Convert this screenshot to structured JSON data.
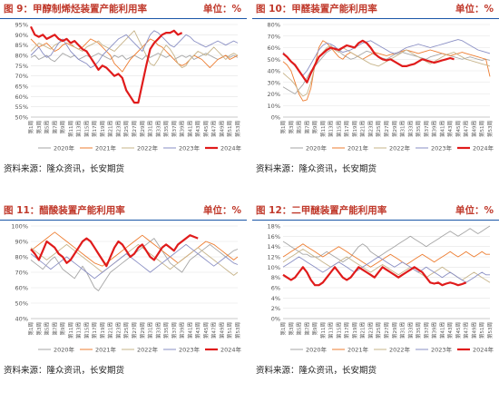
{
  "source_text": "资料来源：隆众资讯，长安期货",
  "unit_text": "单位：%",
  "x_tick_labels": [
    "第1周",
    "第3周",
    "第5周",
    "第7周",
    "第9周",
    "第11周",
    "第13周",
    "第15周",
    "第17周",
    "第19周",
    "第21周",
    "第23周",
    "第25周",
    "第27周",
    "第29周",
    "第31周",
    "第33周",
    "第35周",
    "第37周",
    "第39周",
    "第41周",
    "第43周",
    "第45周",
    "第47周",
    "第49周",
    "第51周",
    "第53周"
  ],
  "series_names": [
    "2020年",
    "2021年",
    "2022年",
    "2023年",
    "2024年"
  ],
  "series_colors": [
    "#a6a6a6",
    "#ed7d31",
    "#c7b48a",
    "#8a8fc4",
    "#e01b1b"
  ],
  "chart_data": [
    {
      "type": "line",
      "title": "图 9：甲醇制烯烃装置产能利用率",
      "ylim": [
        50,
        95
      ],
      "yticks": [
        50,
        55,
        60,
        65,
        70,
        75,
        80,
        85,
        90,
        95
      ],
      "series": [
        {
          "name": "2020年",
          "values": [
            79,
            80,
            78,
            79,
            80,
            78,
            77,
            79,
            81,
            80,
            79,
            80,
            78,
            79,
            80,
            79,
            80,
            81,
            80,
            79,
            78,
            80,
            79,
            80,
            78,
            79,
            80,
            79,
            78,
            80,
            79,
            80,
            81,
            80,
            79,
            80,
            78,
            79,
            80,
            79,
            80,
            78,
            79,
            80,
            81,
            80,
            79,
            78,
            79,
            80,
            79,
            80,
            79
          ]
        },
        {
          "name": "2021年",
          "values": [
            88,
            86,
            84,
            85,
            86,
            84,
            82,
            83,
            85,
            86,
            85,
            84,
            83,
            84,
            86,
            88,
            87,
            86,
            84,
            82,
            80,
            76,
            74,
            72,
            75,
            78,
            80,
            82,
            84,
            86,
            88,
            87,
            85,
            84,
            82,
            80,
            78,
            76,
            75,
            76,
            78,
            80,
            79,
            78,
            76,
            74,
            76,
            78,
            79,
            80,
            78,
            79,
            80
          ]
        },
        {
          "name": "2022年",
          "values": [
            82,
            84,
            86,
            85,
            84,
            83,
            85,
            86,
            87,
            88,
            86,
            84,
            83,
            82,
            84,
            85,
            86,
            87,
            85,
            84,
            83,
            82,
            84,
            86,
            88,
            90,
            92,
            88,
            84,
            80,
            76,
            75,
            78,
            82,
            85,
            83,
            80,
            76,
            74,
            75,
            78,
            80,
            82,
            81,
            80,
            82,
            84,
            82,
            80,
            78,
            80,
            81,
            80
          ]
        },
        {
          "name": "2023年",
          "values": [
            80,
            82,
            84,
            81,
            79,
            80,
            83,
            86,
            88,
            85,
            82,
            80,
            78,
            77,
            76,
            74,
            75,
            77,
            80,
            82,
            84,
            86,
            88,
            89,
            90,
            88,
            86,
            84,
            82,
            86,
            90,
            92,
            91,
            89,
            87,
            85,
            84,
            86,
            88,
            90,
            89,
            87,
            86,
            85,
            84,
            85,
            86,
            87,
            86,
            85,
            86,
            87,
            86
          ]
        },
        {
          "name": "2024年",
          "values": [
            94,
            90,
            89,
            90,
            88,
            89,
            90,
            88,
            87,
            88,
            86,
            87,
            85,
            83,
            82,
            79,
            76,
            73,
            75,
            74,
            72,
            70,
            71,
            69,
            63,
            60,
            57,
            57,
            66,
            75,
            83,
            86,
            88,
            90,
            91,
            91,
            92,
            90,
            91
          ]
        }
      ]
    },
    {
      "type": "line",
      "title": "图 10：甲醛装置产能利用率",
      "ylim": [
        0,
        80
      ],
      "yticks": [
        0,
        10,
        20,
        30,
        40,
        50,
        60,
        70,
        80
      ],
      "series": [
        {
          "name": "2020年",
          "values": [
            26,
            24,
            22,
            20,
            24,
            28,
            34,
            40,
            44,
            48,
            52,
            56,
            58,
            60,
            57,
            54,
            52,
            50,
            51,
            53,
            55,
            57,
            56,
            54,
            52,
            51,
            50,
            52,
            54,
            55,
            56,
            55,
            54,
            53,
            52,
            51,
            50,
            52,
            53,
            54,
            55,
            54,
            53,
            52,
            51,
            50,
            51,
            52,
            51,
            50,
            49,
            50,
            49
          ]
        },
        {
          "name": "2021年",
          "values": [
            48,
            45,
            40,
            30,
            20,
            14,
            15,
            25,
            45,
            60,
            66,
            64,
            60,
            56,
            52,
            50,
            54,
            56,
            54,
            52,
            50,
            52,
            54,
            56,
            55,
            54,
            53,
            54,
            55,
            56,
            57,
            58,
            57,
            56,
            55,
            56,
            57,
            58,
            57,
            56,
            55,
            54,
            53,
            54,
            55,
            56,
            55,
            54,
            53,
            52,
            51,
            50,
            35
          ]
        },
        {
          "name": "2022年",
          "values": [
            38,
            35,
            32,
            28,
            22,
            18,
            20,
            30,
            44,
            52,
            56,
            60,
            62,
            58,
            56,
            60,
            58,
            56,
            54,
            52,
            50,
            48,
            46,
            45,
            44,
            46,
            48,
            50,
            52,
            54,
            56,
            58,
            56,
            54,
            52,
            50,
            48,
            46,
            48,
            50,
            52,
            54,
            55,
            56,
            54,
            52,
            50,
            49,
            48,
            47,
            46,
            45,
            44
          ]
        },
        {
          "name": "2023年",
          "values": [
            56,
            52,
            48,
            44,
            40,
            36,
            40,
            46,
            52,
            58,
            62,
            64,
            63,
            61,
            58,
            56,
            57,
            58,
            60,
            62,
            64,
            65,
            66,
            64,
            62,
            60,
            58,
            56,
            55,
            56,
            58,
            60,
            61,
            62,
            63,
            62,
            61,
            60,
            61,
            62,
            63,
            64,
            65,
            66,
            67,
            66,
            64,
            62,
            60,
            58,
            57,
            56,
            55
          ]
        },
        {
          "name": "2024年",
          "values": [
            55,
            52,
            48,
            45,
            40,
            35,
            30,
            38,
            45,
            52,
            55,
            58,
            60,
            59,
            58,
            60,
            62,
            61,
            60,
            64,
            66,
            64,
            60,
            55,
            52,
            50,
            49,
            50,
            48,
            46,
            44,
            44,
            45,
            46,
            48,
            50,
            49,
            48,
            47,
            48,
            49,
            50,
            51,
            50
          ]
        }
      ]
    },
    {
      "type": "line",
      "title": "图 11：醋酸装置产能利用率",
      "ylim": [
        40,
        100
      ],
      "yticks": [
        40,
        50,
        60,
        70,
        80,
        90,
        100
      ],
      "series": [
        {
          "name": "2020年",
          "values": [
            78,
            76,
            74,
            72,
            75,
            78,
            80,
            76,
            72,
            70,
            68,
            66,
            70,
            74,
            70,
            65,
            60,
            58,
            62,
            66,
            70,
            72,
            74,
            76,
            78,
            80,
            82,
            84,
            86,
            88,
            90,
            92,
            88,
            84,
            80,
            76,
            74,
            72,
            70,
            74,
            78,
            80,
            82,
            84,
            86,
            88,
            86,
            84,
            82,
            80,
            82,
            84,
            85
          ]
        },
        {
          "name": "2021年",
          "values": [
            84,
            86,
            88,
            90,
            92,
            94,
            96,
            94,
            92,
            90,
            88,
            86,
            84,
            82,
            80,
            78,
            76,
            75,
            74,
            76,
            78,
            80,
            82,
            84,
            86,
            88,
            90,
            92,
            94,
            92,
            90,
            88,
            86,
            84,
            82,
            80,
            78,
            76,
            78,
            80,
            82,
            84,
            86,
            88,
            90,
            89,
            88,
            86,
            84,
            82,
            80,
            78,
            80
          ]
        },
        {
          "name": "2022年",
          "values": [
            86,
            84,
            82,
            80,
            78,
            80,
            82,
            84,
            86,
            88,
            86,
            84,
            82,
            80,
            78,
            76,
            74,
            72,
            70,
            72,
            74,
            76,
            78,
            80,
            82,
            84,
            86,
            88,
            86,
            84,
            82,
            80,
            78,
            76,
            74,
            72,
            74,
            76,
            78,
            80,
            82,
            84,
            86,
            84,
            82,
            80,
            78,
            76,
            74,
            72,
            70,
            68,
            70
          ]
        },
        {
          "name": "2023年",
          "values": [
            82,
            80,
            78,
            76,
            74,
            72,
            74,
            76,
            78,
            80,
            78,
            76,
            74,
            72,
            70,
            68,
            66,
            68,
            70,
            72,
            74,
            76,
            78,
            80,
            82,
            80,
            78,
            76,
            74,
            72,
            70,
            72,
            74,
            76,
            78,
            80,
            82,
            84,
            86,
            88,
            86,
            84,
            82,
            80,
            78,
            76,
            74,
            76,
            78,
            80,
            78,
            76,
            75
          ]
        },
        {
          "name": "2024年",
          "values": [
            85,
            82,
            78,
            84,
            90,
            88,
            86,
            82,
            80,
            76,
            78,
            82,
            86,
            90,
            92,
            90,
            86,
            82,
            78,
            74,
            80,
            86,
            90,
            88,
            84,
            80,
            82,
            86,
            88,
            84,
            80,
            78,
            82,
            86,
            88,
            86,
            84,
            88,
            90,
            92,
            94,
            93,
            92
          ]
        }
      ]
    },
    {
      "type": "line",
      "title": "图 12：二甲醚装置产能利用率",
      "ylim": [
        0,
        18
      ],
      "yticks": [
        0,
        2,
        4,
        6,
        8,
        10,
        12,
        14,
        16,
        18
      ],
      "series": [
        {
          "name": "2020年",
          "values": [
            15,
            14.5,
            14,
            13.5,
            13,
            12.5,
            12.5,
            12,
            12,
            12,
            12.5,
            13,
            12.5,
            12,
            11.5,
            11,
            11.5,
            12,
            13,
            14,
            14.5,
            14,
            13,
            12.5,
            12,
            12.5,
            13,
            13.5,
            14,
            14.5,
            15,
            15.5,
            16,
            15.5,
            15,
            14.5,
            14,
            14.5,
            15,
            15.5,
            16,
            16.5,
            17,
            16.5,
            16,
            16.5,
            17,
            17.5,
            17,
            16.5,
            17,
            17.5,
            18
          ]
        },
        {
          "name": "2021年",
          "values": [
            12,
            12.5,
            13,
            13.5,
            14,
            14.5,
            14,
            13.5,
            13,
            12.5,
            12,
            12.5,
            13,
            13.5,
            14,
            13.5,
            13,
            12.5,
            12,
            11.5,
            11,
            10.5,
            10,
            10.5,
            11,
            11.5,
            12,
            12.5,
            12,
            11.5,
            11,
            10.5,
            11,
            11.5,
            12,
            12.5,
            12,
            11.5,
            11,
            11.5,
            12,
            12.5,
            13,
            12.5,
            12,
            12.5,
            13,
            12.5,
            12,
            12.5,
            13,
            12.5,
            12.5
          ]
        },
        {
          "name": "2022年",
          "values": [
            11,
            11.5,
            12,
            12.5,
            13,
            13.5,
            13,
            12.5,
            12,
            11.5,
            11,
            10.5,
            10,
            10.5,
            11,
            11.5,
            12,
            11.5,
            11,
            10.5,
            10,
            9.5,
            9,
            9.5,
            10,
            10.5,
            10,
            9.5,
            9,
            8.5,
            9,
            9.5,
            10,
            9.5,
            9,
            8.5,
            8,
            8.5,
            9,
            9.5,
            10,
            9.5,
            9,
            8.5,
            8,
            7.5,
            8,
            8.5,
            9,
            8.5,
            8,
            7.5,
            7
          ]
        },
        {
          "name": "2023年",
          "values": [
            10,
            10.5,
            11,
            11.5,
            12,
            11.5,
            11,
            10.5,
            10,
            9.5,
            9,
            9.5,
            10,
            10.5,
            11,
            10.5,
            10,
            9.5,
            9,
            9.5,
            10,
            10.5,
            11,
            11.5,
            12,
            11.5,
            11,
            10.5,
            10,
            10.5,
            11,
            10.5,
            10,
            9.5,
            9,
            9.5,
            10,
            9.5,
            9,
            8.5,
            8,
            8.5,
            9,
            8.5,
            8,
            7.5,
            7,
            7.5,
            8,
            8.5,
            9,
            8.5,
            8.5
          ]
        },
        {
          "name": "2024年",
          "values": [
            8.5,
            8,
            7.5,
            8,
            9,
            10,
            9,
            7.5,
            6.5,
            6.5,
            7,
            8,
            9,
            10,
            9,
            8,
            7.5,
            8,
            9,
            10,
            9.5,
            9,
            8.5,
            8,
            9,
            10,
            9.5,
            9,
            8.5,
            8,
            8.5,
            9,
            9.5,
            10,
            9.5,
            9,
            8,
            7,
            6.8,
            7,
            6.5,
            6.8,
            7,
            6.8,
            6.5,
            6.7,
            7
          ]
        }
      ]
    }
  ]
}
